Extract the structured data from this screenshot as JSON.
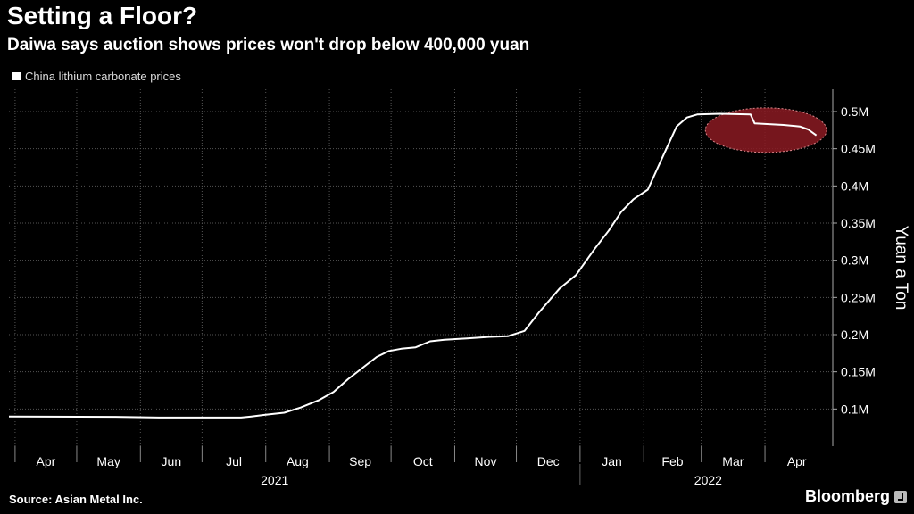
{
  "header": {
    "title": "Setting a Floor?",
    "subtitle": "Daiwa says auction shows prices won't drop below 400,000 yuan"
  },
  "footer": {
    "source": "Source: Asian Metal Inc.",
    "brand": "Bloomberg"
  },
  "colors": {
    "background": "#000000",
    "line": "#ffffff",
    "grid": "#555555",
    "highlight": "#8b1a22"
  },
  "chart_data": {
    "type": "line",
    "legend": "China lithium carbonate prices",
    "legend_position": "top-left",
    "ylabel": "Yuan a Ton",
    "ylim": [
      50000,
      530000
    ],
    "yticks": [
      {
        "value": 100000,
        "label": "0.1M"
      },
      {
        "value": 150000,
        "label": "0.15M"
      },
      {
        "value": 200000,
        "label": "0.2M"
      },
      {
        "value": 250000,
        "label": "0.25M"
      },
      {
        "value": 300000,
        "label": "0.3M"
      },
      {
        "value": 350000,
        "label": "0.35M"
      },
      {
        "value": 400000,
        "label": "0.4M"
      },
      {
        "value": 450000,
        "label": "0.45M"
      },
      {
        "value": 500000,
        "label": "0.5M"
      }
    ],
    "xlim": [
      "2021-03-29",
      "2022-05-04"
    ],
    "xticks": [
      {
        "date": "2021-04-01",
        "label": "Apr"
      },
      {
        "date": "2021-05-01",
        "label": "May"
      },
      {
        "date": "2021-06-01",
        "label": "Jun"
      },
      {
        "date": "2021-07-01",
        "label": "Jul"
      },
      {
        "date": "2021-08-01",
        "label": "Aug"
      },
      {
        "date": "2021-09-01",
        "label": "Sep"
      },
      {
        "date": "2021-10-01",
        "label": "Oct"
      },
      {
        "date": "2021-11-01",
        "label": "Nov"
      },
      {
        "date": "2021-12-01",
        "label": "Dec"
      },
      {
        "date": "2022-01-01",
        "label": "Jan"
      },
      {
        "date": "2022-02-01",
        "label": "Feb"
      },
      {
        "date": "2022-03-01",
        "label": "Mar"
      },
      {
        "date": "2022-04-01",
        "label": "Apr"
      }
    ],
    "year_labels": [
      {
        "date": "2021-08-01",
        "label": "2021"
      },
      {
        "date": "2022-02-28",
        "label": "2022"
      }
    ],
    "grid": true,
    "highlight": {
      "x_start": "2022-03-03",
      "x_end": "2022-05-01",
      "y_low": 445000,
      "y_high": 505000
    },
    "series": [
      {
        "name": "China lithium carbonate prices",
        "points": [
          [
            "2021-03-29",
            90000
          ],
          [
            "2021-05-20",
            89500
          ],
          [
            "2021-06-10",
            88500
          ],
          [
            "2021-07-20",
            88500
          ],
          [
            "2021-07-25",
            90000
          ],
          [
            "2021-07-31",
            92000
          ],
          [
            "2021-08-10",
            95000
          ],
          [
            "2021-08-18",
            102000
          ],
          [
            "2021-08-27",
            112000
          ],
          [
            "2021-09-03",
            123000
          ],
          [
            "2021-09-10",
            140000
          ],
          [
            "2021-09-17",
            155000
          ],
          [
            "2021-09-24",
            170000
          ],
          [
            "2021-09-30",
            178000
          ],
          [
            "2021-10-06",
            181000
          ],
          [
            "2021-10-13",
            183000
          ],
          [
            "2021-10-20",
            191000
          ],
          [
            "2021-10-27",
            193000
          ],
          [
            "2021-11-07",
            195000
          ],
          [
            "2021-11-18",
            197000
          ],
          [
            "2021-11-27",
            198000
          ],
          [
            "2021-12-05",
            205000
          ],
          [
            "2021-12-12",
            230000
          ],
          [
            "2021-12-22",
            262000
          ],
          [
            "2021-12-30",
            280000
          ],
          [
            "2022-01-08",
            315000
          ],
          [
            "2022-01-15",
            340000
          ],
          [
            "2022-01-21",
            365000
          ],
          [
            "2022-01-27",
            382000
          ],
          [
            "2022-02-03",
            395000
          ],
          [
            "2022-02-10",
            438000
          ],
          [
            "2022-02-17",
            480000
          ],
          [
            "2022-02-22",
            492000
          ],
          [
            "2022-02-27",
            496000
          ],
          [
            "2022-03-10",
            497000
          ],
          [
            "2022-03-25",
            496000
          ],
          [
            "2022-03-27",
            484000
          ],
          [
            "2022-04-10",
            482000
          ],
          [
            "2022-04-18",
            480000
          ],
          [
            "2022-04-22",
            476000
          ],
          [
            "2022-04-26",
            468000
          ]
        ]
      }
    ]
  }
}
